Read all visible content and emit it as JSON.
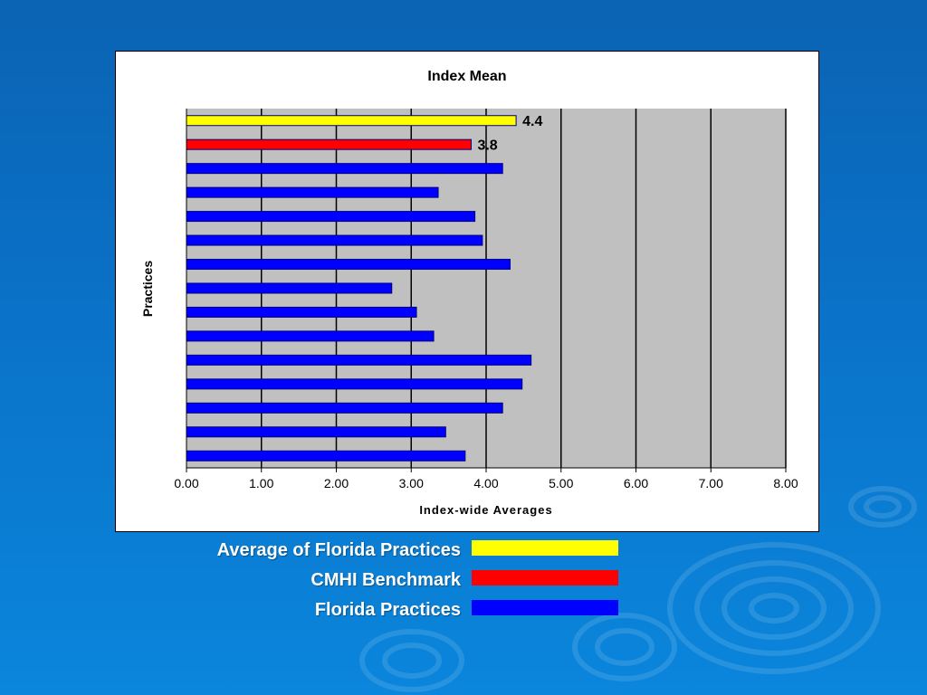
{
  "chart_data": {
    "type": "bar",
    "orientation": "horizontal",
    "title": "Index Mean",
    "xlabel": "Index-wide Averages",
    "ylabel": "Practices",
    "xlim": [
      0,
      8
    ],
    "x_ticks": [
      "0.00",
      "1.00",
      "2.00",
      "3.00",
      "4.00",
      "5.00",
      "6.00",
      "7.00",
      "8.00"
    ],
    "grid": "vertical",
    "bars": [
      {
        "series": "Average of Florida Practices",
        "value": 4.4,
        "label": "4.4"
      },
      {
        "series": "CMHI Benchmark",
        "value": 3.8,
        "label": "3.8"
      },
      {
        "series": "Florida Practices",
        "value": 4.22
      },
      {
        "series": "Florida Practices",
        "value": 3.36
      },
      {
        "series": "Florida Practices",
        "value": 3.85
      },
      {
        "series": "Florida Practices",
        "value": 3.95
      },
      {
        "series": "Florida Practices",
        "value": 4.32
      },
      {
        "series": "Florida Practices",
        "value": 2.74
      },
      {
        "series": "Florida Practices",
        "value": 3.07
      },
      {
        "series": "Florida Practices",
        "value": 3.3
      },
      {
        "series": "Florida Practices",
        "value": 4.6
      },
      {
        "series": "Florida Practices",
        "value": 4.48
      },
      {
        "series": "Florida Practices",
        "value": 4.22
      },
      {
        "series": "Florida Practices",
        "value": 3.46
      },
      {
        "series": "Florida Practices",
        "value": 3.72
      }
    ],
    "series": [
      {
        "name": "Average of Florida Practices",
        "color": "#ffff00"
      },
      {
        "name": "CMHI Benchmark",
        "color": "#ff0000"
      },
      {
        "name": "Florida Practices",
        "color": "#0000ff"
      }
    ],
    "legend_position": "bottom"
  },
  "colors": {
    "plot_background": "#c0c0c0",
    "bar_border": "#000080"
  }
}
